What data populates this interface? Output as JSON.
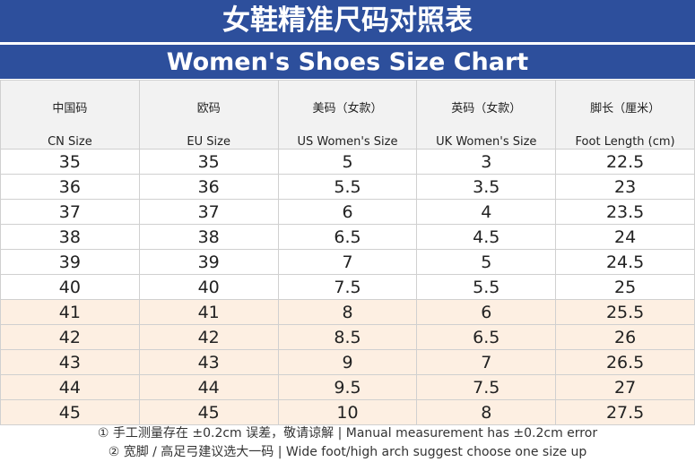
{
  "title": "女鞋精准尺码对照表",
  "subtitle": "Women's Shoes Size Chart",
  "table": {
    "header_zh": [
      "中国码",
      "欧码",
      "美码（女款）",
      "英码（女款）",
      "脚长（厘米）"
    ],
    "header_en": [
      "CN Size",
      "EU Size",
      "US Women's Size",
      "UK Women's Size",
      "Foot Length (cm)"
    ],
    "rows": [
      [
        "35",
        "35",
        "5",
        "3",
        "22.5"
      ],
      [
        "36",
        "36",
        "5.5",
        "3.5",
        "23"
      ],
      [
        "37",
        "37",
        "6",
        "4",
        "23.5"
      ],
      [
        "38",
        "38",
        "6.5",
        "4.5",
        "24"
      ],
      [
        "39",
        "39",
        "7",
        "5",
        "24.5"
      ],
      [
        "40",
        "40",
        "7.5",
        "5.5",
        "25"
      ],
      [
        "41",
        "41",
        "8",
        "6",
        "25.5"
      ],
      [
        "42",
        "42",
        "8.5",
        "6.5",
        "26"
      ],
      [
        "43",
        "43",
        "9",
        "7",
        "26.5"
      ],
      [
        "44",
        "44",
        "9.5",
        "7.5",
        "27"
      ],
      [
        "45",
        "45",
        "10",
        "8",
        "27.5"
      ]
    ]
  },
  "notes": [
    "① 手工测量存在 ±0.2cm 误差，敬请谅解 | Manual measurement has ±0.2cm error",
    "② 宽脚 / 高足弓建议选大一码 | Wide foot/high arch suggest choose one size up"
  ]
}
